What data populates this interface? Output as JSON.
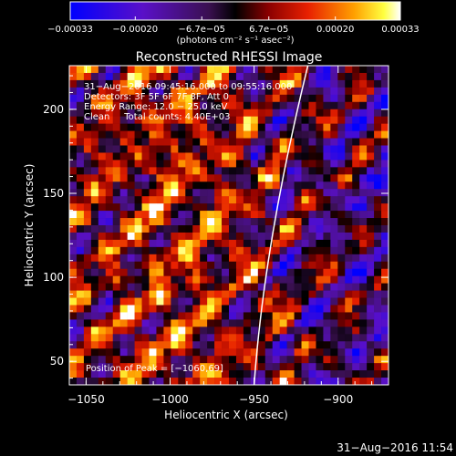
{
  "chart_data": {
    "type": "heatmap",
    "title": "Reconstructed RHESSI Image",
    "xlabel": "Heliocentric X (arcsec)",
    "ylabel": "Heliocentric Y (arcsec)",
    "xlim": [
      -1060,
      -870
    ],
    "ylim": [
      36,
      226
    ],
    "x_ticks": [
      -1050,
      -1000,
      -950,
      -900
    ],
    "x_tick_labels": [
      "−1050",
      "−1000",
      "−950",
      "−900"
    ],
    "y_ticks": [
      50,
      100,
      150,
      200
    ],
    "y_tick_labels": [
      "50",
      "100",
      "150",
      "200"
    ],
    "colorbar": {
      "range": [
        -0.00033,
        0.00033
      ],
      "ticks": [
        -0.00033,
        -0.0002,
        -6.7e-05,
        6.7e-05,
        0.0002,
        0.00033
      ],
      "tick_labels": [
        "−0.00033",
        "−0.00020",
        "−6.7e−05",
        "6.7e−05",
        "0.00020",
        "0.00033"
      ],
      "units": "(photons cm⁻² s⁻¹ asec⁻²)",
      "colormap": "blue-purple-black-red-yellow-white"
    },
    "info_lines": [
      "31−Aug−2016 09:45:16.000 to 09:55:16.000",
      "Detectors: 3F 5F 6F 7F 8F, Att 0",
      "Energy Range: 12.0 − 25.0 keV",
      "Clean     Total counts: 4.40E+03"
    ],
    "peak_label": "Position of Peak = [−1060,69]",
    "limb_curve": "solar limb (white line) from about (-950, 36) to (-918, 226)"
  },
  "footer_timestamp": "31−Aug−2016 11:54",
  "colors": {
    "background": "#000000",
    "axes": "#ffffff",
    "limb": "#ffffff",
    "cmap_low": "#0000ff",
    "cmap_mid": "#000000",
    "cmap_high": "#ffffff"
  }
}
